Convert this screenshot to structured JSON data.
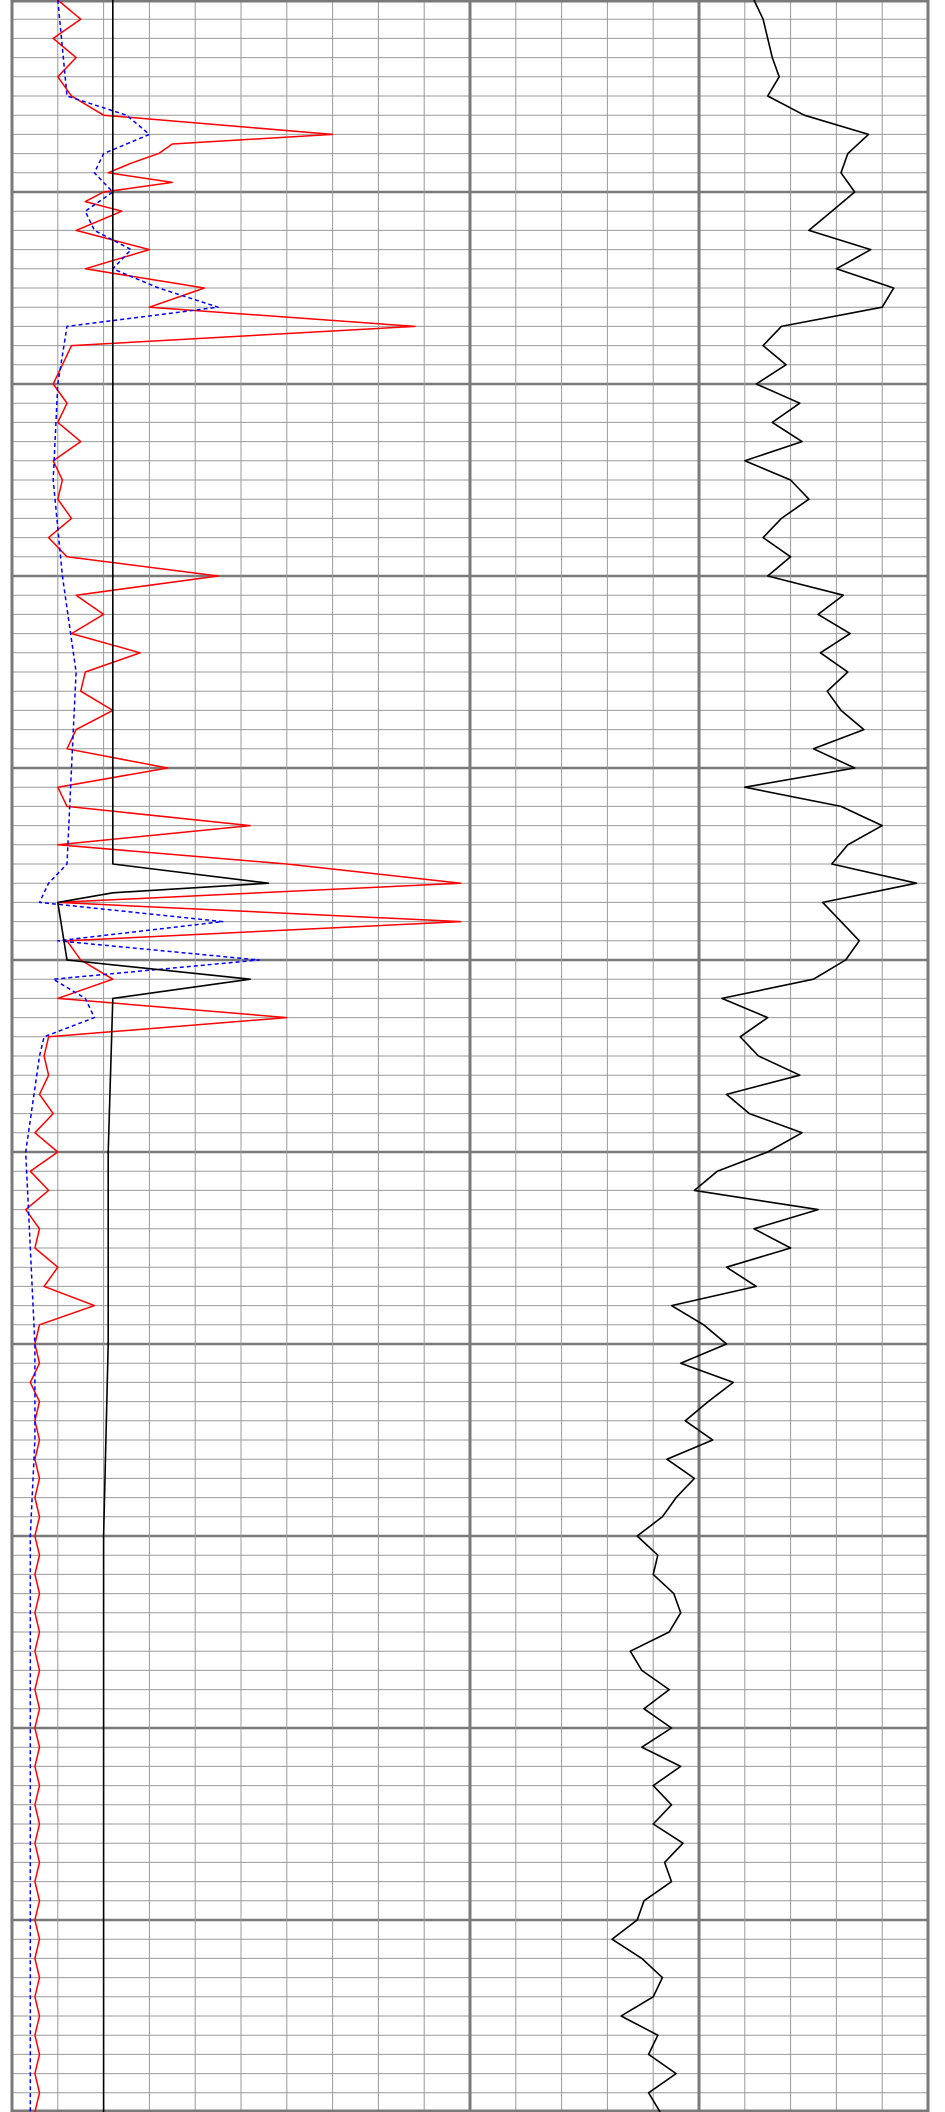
{
  "chart_data": {
    "type": "line",
    "title": "",
    "xlabel": "",
    "ylabel": "",
    "grid": true,
    "legend": "none",
    "colors": {
      "grid_minor": "#9a9a9a",
      "grid_major": "#7a7a7a",
      "red_series": "#ff0000",
      "blue_series": "#0000ff",
      "black_series": "#000000",
      "background": "#ffffff"
    },
    "panels": [
      {
        "id": "left",
        "xlim": [
          0,
          10
        ],
        "series": [
          {
            "style": "solid",
            "color": "red",
            "depth": [
              0,
              1,
              2,
              3,
              4,
              5,
              6,
              7,
              7.5,
              8,
              8.5,
              9,
              9.5,
              10,
              10.5,
              11,
              12,
              13,
              14,
              15,
              16,
              17,
              18,
              19,
              20,
              21,
              22,
              23,
              24,
              25,
              26,
              27,
              28,
              29,
              30,
              31,
              32,
              33,
              34,
              35,
              36,
              37,
              38,
              39,
              40,
              41,
              42,
              43,
              44,
              45,
              46,
              47,
              48,
              49,
              50,
              51,
              52,
              53,
              54,
              55,
              56,
              57,
              58,
              59,
              60,
              61,
              62,
              63,
              64,
              65,
              66,
              67,
              68,
              69,
              70,
              71,
              72,
              73,
              74,
              75,
              76,
              77,
              78,
              79,
              80,
              81,
              82,
              83,
              84,
              85,
              86,
              87,
              88,
              89,
              90,
              91,
              92,
              93,
              94,
              95,
              96,
              97,
              98,
              99,
              100,
              101,
              102,
              103,
              104,
              105,
              106,
              107,
              108,
              109,
              110
            ],
            "values": [
              1.0,
              1.5,
              0.9,
              1.4,
              1.0,
              1.3,
              2.0,
              7.0,
              3.5,
              3.2,
              2.6,
              2.1,
              3.5,
              2.0,
              1.6,
              2.4,
              1.4,
              3.0,
              1.6,
              4.2,
              3.0,
              8.8,
              1.3,
              1.1,
              0.9,
              1.2,
              1.0,
              1.5,
              0.9,
              1.1,
              1.0,
              1.3,
              0.8,
              1.2,
              4.5,
              1.4,
              2.0,
              1.3,
              2.8,
              1.6,
              1.5,
              2.2,
              1.4,
              1.2,
              3.4,
              1.0,
              1.2,
              5.2,
              1.0,
              6.0,
              9.8,
              1.0,
              9.8,
              1.2,
              1.5,
              2.2,
              1.0,
              6.0,
              0.8,
              0.7,
              0.8,
              0.6,
              0.9,
              0.5,
              1.0,
              0.4,
              0.8,
              0.3,
              0.6,
              0.5,
              1.0,
              0.7,
              1.8,
              0.6,
              0.5,
              0.6,
              0.4,
              0.6,
              0.5,
              0.6,
              0.5,
              0.6,
              0.5,
              0.6,
              0.5,
              0.6,
              0.5,
              0.6,
              0.5,
              0.6,
              0.5,
              0.6,
              0.5,
              0.6,
              0.5,
              0.6,
              0.5,
              0.6,
              0.5,
              0.6,
              0.5,
              0.6,
              0.5,
              0.6,
              0.5,
              0.6,
              0.5,
              0.6,
              0.5,
              0.6,
              0.5,
              0.6,
              0.5,
              0.6,
              0.5
            ]
          },
          {
            "style": "dashed",
            "color": "blue",
            "depth": [
              0,
              5,
              6,
              7,
              8,
              9,
              10,
              11,
              12,
              13,
              14,
              15,
              16,
              17,
              20,
              25,
              30,
              35,
              40,
              45,
              46,
              47,
              48,
              49,
              50,
              51,
              52,
              53,
              54,
              55,
              60,
              65,
              70,
              75,
              80,
              85,
              90,
              95,
              100,
              105,
              110
            ],
            "values": [
              1.0,
              1.2,
              2.5,
              3.0,
              2.0,
              1.8,
              2.2,
              1.6,
              1.8,
              2.6,
              2.2,
              3.2,
              4.5,
              1.2,
              1.0,
              0.9,
              1.1,
              1.4,
              1.3,
              1.2,
              0.8,
              0.6,
              4.6,
              1.0,
              5.4,
              0.9,
              1.6,
              1.8,
              0.7,
              0.6,
              0.3,
              0.4,
              0.5,
              0.5,
              0.4,
              0.4,
              0.4,
              0.4,
              0.4,
              0.4,
              0.4
            ]
          },
          {
            "style": "solid",
            "color": "black",
            "depth": [
              0,
              10,
              20,
              30,
              40,
              45,
              46,
              46.5,
              47,
              50,
              51,
              52,
              60,
              70,
              80,
              90,
              100,
              110
            ],
            "values": [
              2.2,
              2.2,
              2.2,
              2.2,
              2.2,
              2.2,
              5.6,
              2.2,
              1.0,
              1.2,
              5.2,
              2.2,
              2.1,
              2.1,
              2.0,
              2.0,
              2.0,
              2.0
            ]
          }
        ]
      },
      {
        "id": "right",
        "xlim": [
          0,
          20
        ],
        "series": [
          {
            "style": "solid",
            "color": "black",
            "depth": [
              0,
              1,
              2,
              3,
              4,
              5,
              6,
              7,
              8,
              9,
              10,
              11,
              12,
              13,
              14,
              15,
              16,
              17,
              18,
              19,
              20,
              21,
              22,
              23,
              24,
              25,
              26,
              27,
              28,
              29,
              30,
              31,
              32,
              33,
              34,
              35,
              36,
              37,
              38,
              39,
              40,
              41,
              42,
              43,
              44,
              45,
              46,
              47,
              48,
              49,
              50,
              51,
              52,
              53,
              54,
              55,
              56,
              57,
              58,
              59,
              60,
              61,
              62,
              63,
              64,
              65,
              66,
              67,
              68,
              69,
              70,
              71,
              72,
              73,
              74,
              75,
              76,
              77,
              78,
              79,
              80,
              81,
              82,
              83,
              84,
              85,
              86,
              87,
              88,
              89,
              90,
              91,
              92,
              93,
              94,
              95,
              96,
              97,
              98,
              99,
              100,
              101,
              102,
              103,
              104,
              105,
              106,
              107,
              108,
              109,
              110
            ],
            "values": [
              12.4,
              12.8,
              13.0,
              13.2,
              13.5,
              13.0,
              14.6,
              17.4,
              16.5,
              16.2,
              16.8,
              15.8,
              14.8,
              17.5,
              16.0,
              18.5,
              18.0,
              13.6,
              12.8,
              13.8,
              12.5,
              14.4,
              13.2,
              14.5,
              12.0,
              14.0,
              14.8,
              13.6,
              12.8,
              14.0,
              13.0,
              16.3,
              15.2,
              16.6,
              15.3,
              16.5,
              15.6,
              16.2,
              17.2,
              15.0,
              16.8,
              12.0,
              16.2,
              18.0,
              16.5,
              15.8,
              19.5,
              15.4,
              16.2,
              17.0,
              16.4,
              15.0,
              11.0,
              13.0,
              11.8,
              12.6,
              14.4,
              11.2,
              12.2,
              14.5,
              13.0,
              10.8,
              9.8,
              15.2,
              12.4,
              14.0,
              11.2,
              12.5,
              8.8,
              10.2,
              11.2,
              9.2,
              11.5,
              10.4,
              9.4,
              10.6,
              8.6,
              9.8,
              9.0,
              8.4,
              7.3,
              8.2,
              8.0,
              8.9,
              9.2,
              8.7,
              7.0,
              7.5,
              8.7,
              7.6,
              8.8,
              7.5,
              9.2,
              8.0,
              8.8,
              8.0,
              9.3,
              8.5,
              8.8,
              7.6,
              7.3,
              6.2,
              7.5,
              8.4,
              8.0,
              6.6,
              8.2,
              7.8,
              9.0,
              7.8,
              8.3
            ]
          }
        ]
      }
    ],
    "depth_range": [
      0,
      110
    ]
  }
}
